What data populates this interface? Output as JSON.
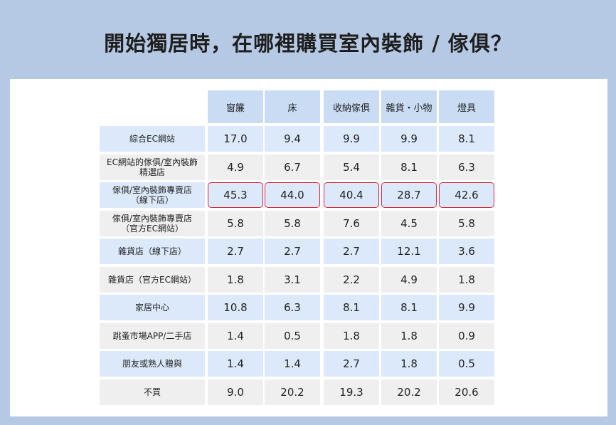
{
  "title": "開始獨居時，在哪裡購買室內裝飾 / 傢俱？",
  "chart_data": {
    "type": "table",
    "columns": [
      "窗簾",
      "床",
      "收納傢俱",
      "雜貨・小物",
      "燈具"
    ],
    "rows": [
      {
        "label": "綜合EC網站",
        "values": [
          "17.0",
          "9.4",
          "9.9",
          "9.9",
          "8.1"
        ]
      },
      {
        "label": "EC網站的傢俱/室內裝飾精選店",
        "values": [
          "4.9",
          "6.7",
          "5.4",
          "8.1",
          "6.3"
        ]
      },
      {
        "label": "傢俱/室內裝飾專賣店（線下店）",
        "values": [
          "45.3",
          "44.0",
          "40.4",
          "28.7",
          "42.6"
        ],
        "highlighted": true
      },
      {
        "label": "傢俱/室內裝飾專賣店（官方EC網站）",
        "values": [
          "5.8",
          "5.8",
          "7.6",
          "4.5",
          "5.8"
        ]
      },
      {
        "label": "雜貨店（線下店）",
        "values": [
          "2.7",
          "2.7",
          "2.7",
          "12.1",
          "3.6"
        ]
      },
      {
        "label": "雜貨店（官方EC網站）",
        "values": [
          "1.8",
          "3.1",
          "2.2",
          "4.9",
          "1.8"
        ]
      },
      {
        "label": "家居中心",
        "values": [
          "10.8",
          "6.3",
          "8.1",
          "8.1",
          "9.9"
        ]
      },
      {
        "label": "跳蚤市場APP/二手店",
        "values": [
          "1.4",
          "0.5",
          "1.8",
          "1.8",
          "0.9"
        ]
      },
      {
        "label": "朋友或熟人贈與",
        "values": [
          "1.4",
          "1.4",
          "2.7",
          "1.8",
          "0.5"
        ]
      },
      {
        "label": "不買",
        "values": [
          "9.0",
          "20.2",
          "19.3",
          "20.2",
          "20.6"
        ]
      }
    ]
  },
  "colors": {
    "background": "#b5c9e4",
    "panel": "#ffffff",
    "header_cell": "#c9dcf3",
    "blue_row": "#dbe9fb",
    "gray_row": "#efefef",
    "highlight_border": "#d9243a"
  }
}
